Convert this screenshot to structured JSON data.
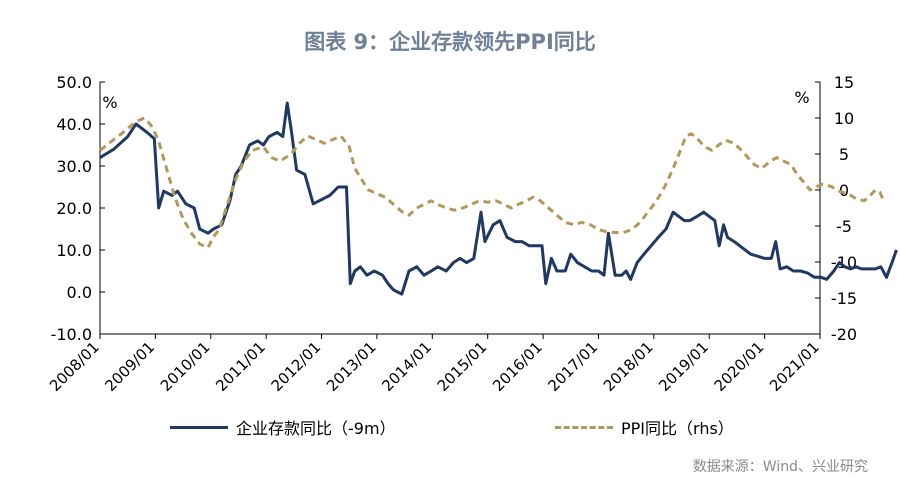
{
  "title": "图表 9：企业存款领先PPI同比",
  "source": "数据来源：Wind、兴业研究",
  "colors": {
    "navy": "#1f3864",
    "gold": "#b4985a",
    "axis": "#000000"
  },
  "chart_data": {
    "type": "line",
    "x_tick_labels": [
      "2008/01",
      "2009/01",
      "2010/01",
      "2011/01",
      "2012/01",
      "2013/01",
      "2014/01",
      "2015/01",
      "2016/01",
      "2017/01",
      "2018/01",
      "2019/01",
      "2020/01",
      "2021/01"
    ],
    "y_left": {
      "unit": "%",
      "ylim": [
        -10,
        50
      ],
      "ticks": [
        -10,
        0,
        10,
        20,
        30,
        40,
        50
      ],
      "tick_labels": [
        "-10.0",
        "0.0",
        "10.0",
        "20.0",
        "30.0",
        "40.0",
        "50.0"
      ]
    },
    "y_right": {
      "unit": "%",
      "ylim": [
        -20,
        15
      ],
      "ticks": [
        -20,
        -15,
        -10,
        -5,
        0,
        5,
        10,
        15
      ],
      "tick_labels": [
        "-20",
        "-15",
        "-10",
        "-5",
        "0",
        "5",
        "10",
        "15"
      ]
    },
    "grid": false,
    "legend_position": "bottom",
    "series": [
      {
        "name": "企业存款同比（-9m）",
        "axis": "left",
        "style": "solid",
        "color": "#1f3864",
        "points": [
          [
            2008.0,
            32
          ],
          [
            2008.25,
            34
          ],
          [
            2008.5,
            37
          ],
          [
            2008.65,
            40
          ],
          [
            2008.85,
            38
          ],
          [
            2008.98,
            36.5
          ],
          [
            2009.06,
            20
          ],
          [
            2009.15,
            24
          ],
          [
            2009.3,
            23
          ],
          [
            2009.4,
            24
          ],
          [
            2009.55,
            21
          ],
          [
            2009.7,
            20
          ],
          [
            2009.8,
            15
          ],
          [
            2009.95,
            14
          ],
          [
            2010.05,
            15
          ],
          [
            2010.2,
            16
          ],
          [
            2010.35,
            22
          ],
          [
            2010.45,
            28
          ],
          [
            2010.55,
            30
          ],
          [
            2010.7,
            35
          ],
          [
            2010.85,
            36
          ],
          [
            2010.95,
            35
          ],
          [
            2011.05,
            37
          ],
          [
            2011.2,
            38
          ],
          [
            2011.3,
            37
          ],
          [
            2011.38,
            45
          ],
          [
            2011.46,
            38
          ],
          [
            2011.55,
            29
          ],
          [
            2011.7,
            28
          ],
          [
            2011.85,
            21
          ],
          [
            2012.0,
            22
          ],
          [
            2012.15,
            23
          ],
          [
            2012.3,
            25
          ],
          [
            2012.45,
            25
          ],
          [
            2012.52,
            2
          ],
          [
            2012.6,
            5
          ],
          [
            2012.7,
            6
          ],
          [
            2012.82,
            4
          ],
          [
            2012.95,
            5
          ],
          [
            2013.1,
            4
          ],
          [
            2013.2,
            2
          ],
          [
            2013.3,
            0.5
          ],
          [
            2013.45,
            -0.5
          ],
          [
            2013.58,
            5
          ],
          [
            2013.72,
            6
          ],
          [
            2013.85,
            4
          ],
          [
            2013.98,
            5
          ],
          [
            2014.1,
            6
          ],
          [
            2014.25,
            5
          ],
          [
            2014.38,
            7
          ],
          [
            2014.5,
            8
          ],
          [
            2014.62,
            7
          ],
          [
            2014.75,
            8
          ],
          [
            2014.88,
            19
          ],
          [
            2014.95,
            12
          ],
          [
            2015.1,
            16
          ],
          [
            2015.22,
            17
          ],
          [
            2015.35,
            13
          ],
          [
            2015.5,
            12
          ],
          [
            2015.62,
            12
          ],
          [
            2015.75,
            11
          ],
          [
            2015.88,
            11
          ],
          [
            2015.98,
            11
          ],
          [
            2016.05,
            2
          ],
          [
            2016.15,
            8
          ],
          [
            2016.25,
            5
          ],
          [
            2016.4,
            5
          ],
          [
            2016.5,
            9
          ],
          [
            2016.62,
            7
          ],
          [
            2016.75,
            6
          ],
          [
            2016.88,
            5
          ],
          [
            2017.0,
            5
          ],
          [
            2017.1,
            4
          ],
          [
            2017.18,
            14
          ],
          [
            2017.3,
            4
          ],
          [
            2017.42,
            4
          ],
          [
            2017.5,
            5
          ],
          [
            2017.58,
            3
          ],
          [
            2017.7,
            7
          ],
          [
            2017.82,
            9
          ],
          [
            2017.95,
            11
          ],
          [
            2018.08,
            13
          ],
          [
            2018.22,
            15
          ],
          [
            2018.35,
            19
          ],
          [
            2018.45,
            18
          ],
          [
            2018.55,
            17
          ],
          [
            2018.65,
            17
          ],
          [
            2018.78,
            18
          ],
          [
            2018.9,
            19
          ],
          [
            2019.0,
            18
          ],
          [
            2019.1,
            17
          ],
          [
            2019.18,
            11
          ],
          [
            2019.26,
            16
          ],
          [
            2019.33,
            13
          ],
          [
            2019.45,
            12
          ],
          [
            2019.55,
            11
          ],
          [
            2019.65,
            10
          ],
          [
            2019.75,
            9
          ],
          [
            2019.88,
            8.5
          ],
          [
            2020.0,
            8
          ],
          [
            2020.12,
            8
          ],
          [
            2020.2,
            12
          ],
          [
            2020.28,
            5.5
          ],
          [
            2020.4,
            6
          ],
          [
            2020.52,
            5
          ],
          [
            2020.65,
            5
          ],
          [
            2020.78,
            4.5
          ],
          [
            2020.9,
            3.5
          ],
          [
            2021.02,
            3.5
          ],
          [
            2021.12,
            3
          ],
          [
            2021.25,
            5
          ],
          [
            2021.35,
            7
          ],
          [
            2021.45,
            6
          ],
          [
            2021.55,
            5.5
          ],
          [
            2021.65,
            6
          ],
          [
            2021.75,
            5.5
          ],
          [
            2021.88,
            5.5
          ],
          [
            2022.0,
            5.5
          ],
          [
            2022.1,
            6
          ],
          [
            2022.2,
            3.5
          ],
          [
            2022.3,
            7
          ],
          [
            2022.38,
            10
          ]
        ]
      },
      {
        "name": "PPI同比（rhs）",
        "axis": "right",
        "style": "dashed",
        "color": "#b4985a",
        "points": [
          [
            2008.0,
            5.5
          ],
          [
            2008.25,
            7
          ],
          [
            2008.45,
            8.2
          ],
          [
            2008.65,
            9.5
          ],
          [
            2008.8,
            10
          ],
          [
            2008.92,
            9
          ],
          [
            2009.05,
            7
          ],
          [
            2009.2,
            3
          ],
          [
            2009.35,
            -1
          ],
          [
            2009.5,
            -4
          ],
          [
            2009.65,
            -6
          ],
          [
            2009.8,
            -7.5
          ],
          [
            2009.95,
            -8
          ],
          [
            2010.05,
            -6.5
          ],
          [
            2010.15,
            -5.5
          ],
          [
            2010.3,
            -2
          ],
          [
            2010.45,
            1.5
          ],
          [
            2010.6,
            4
          ],
          [
            2010.75,
            5.5
          ],
          [
            2010.95,
            6
          ],
          [
            2011.1,
            4.5
          ],
          [
            2011.25,
            4
          ],
          [
            2011.45,
            5
          ],
          [
            2011.6,
            6.5
          ],
          [
            2011.75,
            7.5
          ],
          [
            2011.9,
            7
          ],
          [
            2012.05,
            6.5
          ],
          [
            2012.2,
            7
          ],
          [
            2012.35,
            7.5
          ],
          [
            2012.5,
            6
          ],
          [
            2012.6,
            3
          ],
          [
            2012.72,
            1.5
          ],
          [
            2012.85,
            0
          ],
          [
            2013.0,
            -0.5
          ],
          [
            2013.15,
            -1
          ],
          [
            2013.3,
            -2
          ],
          [
            2013.45,
            -3
          ],
          [
            2013.58,
            -3.5
          ],
          [
            2013.72,
            -2.5
          ],
          [
            2013.85,
            -2
          ],
          [
            2013.98,
            -1.5
          ],
          [
            2014.1,
            -2
          ],
          [
            2014.25,
            -2.5
          ],
          [
            2014.4,
            -2.8
          ],
          [
            2014.55,
            -2.5
          ],
          [
            2014.7,
            -2
          ],
          [
            2014.85,
            -1.5
          ],
          [
            2015.0,
            -1.7
          ],
          [
            2015.15,
            -1.5
          ],
          [
            2015.3,
            -2
          ],
          [
            2015.42,
            -2.5
          ],
          [
            2015.55,
            -2
          ],
          [
            2015.7,
            -1.5
          ],
          [
            2015.82,
            -1
          ],
          [
            2015.95,
            -1.5
          ],
          [
            2016.1,
            -2.5
          ],
          [
            2016.25,
            -3.5
          ],
          [
            2016.4,
            -4.5
          ],
          [
            2016.55,
            -4.8
          ],
          [
            2016.7,
            -4.5
          ],
          [
            2016.85,
            -4.8
          ],
          [
            2017.0,
            -5.5
          ],
          [
            2017.15,
            -5.8
          ],
          [
            2017.3,
            -5.9
          ],
          [
            2017.45,
            -5.9
          ],
          [
            2017.6,
            -5.5
          ],
          [
            2017.75,
            -4.5
          ],
          [
            2017.9,
            -3
          ],
          [
            2018.05,
            -1.5
          ],
          [
            2018.2,
            0.5
          ],
          [
            2018.35,
            3
          ],
          [
            2018.48,
            5.5
          ],
          [
            2018.58,
            7.5
          ],
          [
            2018.68,
            7.8
          ],
          [
            2018.8,
            7
          ],
          [
            2018.92,
            6
          ],
          [
            2019.05,
            5.5
          ],
          [
            2019.18,
            6.3
          ],
          [
            2019.3,
            6.9
          ],
          [
            2019.45,
            6.5
          ],
          [
            2019.58,
            5.5
          ],
          [
            2019.7,
            4.5
          ],
          [
            2019.82,
            3.5
          ],
          [
            2019.95,
            3
          ],
          [
            2020.1,
            4
          ],
          [
            2020.22,
            4.5
          ],
          [
            2020.35,
            4
          ],
          [
            2020.48,
            3.5
          ],
          [
            2020.6,
            2
          ],
          [
            2020.72,
            1
          ],
          [
            2020.82,
            0
          ],
          [
            2020.95,
            0.5
          ],
          [
            2021.05,
            0.8
          ],
          [
            2021.2,
            0.5
          ],
          [
            2021.35,
            -0.2
          ],
          [
            2021.5,
            -0.5
          ],
          [
            2021.65,
            -1.2
          ],
          [
            2021.8,
            -1.5
          ],
          [
            2021.9,
            -0.8
          ],
          [
            2022.0,
            0
          ],
          [
            2022.08,
            -0.3
          ],
          [
            2022.15,
            -1.5
          ]
        ]
      }
    ]
  }
}
